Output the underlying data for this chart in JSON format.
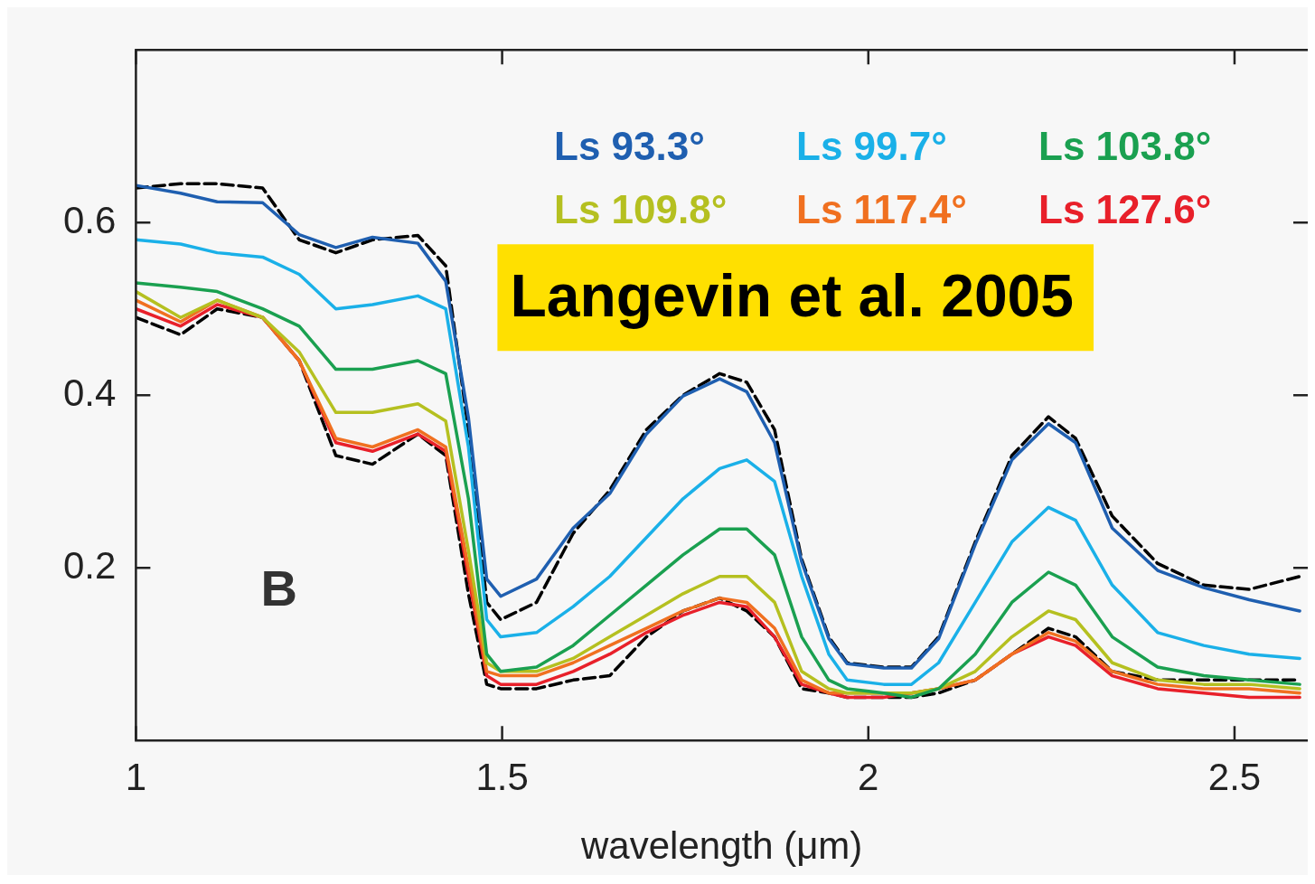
{
  "chart_data": {
    "type": "line",
    "xlabel": "wavelength (μm)",
    "x": [
      1.0,
      1.061,
      1.111,
      1.173,
      1.223,
      1.273,
      1.323,
      1.385,
      1.423,
      1.454,
      1.479,
      1.498,
      1.547,
      1.597,
      1.647,
      1.697,
      1.747,
      1.797,
      1.834,
      1.872,
      1.909,
      1.946,
      1.971,
      2.021,
      2.059,
      2.096,
      2.146,
      2.196,
      2.246,
      2.283,
      2.333,
      2.395,
      2.458,
      2.52,
      2.589
    ],
    "series": [
      {
        "name": "Ls 93.3°",
        "color": "#1f5fb0",
        "values": [
          0.643,
          0.634,
          0.624,
          0.623,
          0.586,
          0.571,
          0.583,
          0.576,
          0.532,
          0.374,
          0.187,
          0.167,
          0.187,
          0.246,
          0.286,
          0.355,
          0.399,
          0.419,
          0.404,
          0.345,
          0.207,
          0.118,
          0.089,
          0.084,
          0.084,
          0.118,
          0.227,
          0.325,
          0.367,
          0.345,
          0.246,
          0.197,
          0.177,
          0.163,
          0.15
        ]
      },
      {
        "name": "Ls 99.7°",
        "color": "#1ab0e8",
        "values": [
          0.58,
          0.575,
          0.565,
          0.56,
          0.54,
          0.5,
          0.505,
          0.515,
          0.5,
          0.34,
          0.14,
          0.12,
          0.125,
          0.155,
          0.19,
          0.235,
          0.28,
          0.315,
          0.325,
          0.3,
          0.19,
          0.1,
          0.07,
          0.065,
          0.065,
          0.09,
          0.16,
          0.23,
          0.27,
          0.255,
          0.18,
          0.125,
          0.11,
          0.1,
          0.095
        ]
      },
      {
        "name": "Ls 103.8°",
        "color": "#1aa050",
        "values": [
          0.53,
          0.525,
          0.52,
          0.5,
          0.48,
          0.43,
          0.43,
          0.44,
          0.425,
          0.28,
          0.1,
          0.08,
          0.085,
          0.11,
          0.145,
          0.18,
          0.215,
          0.245,
          0.245,
          0.215,
          0.12,
          0.07,
          0.06,
          0.055,
          0.05,
          0.06,
          0.1,
          0.16,
          0.195,
          0.18,
          0.12,
          0.085,
          0.075,
          0.07,
          0.065
        ]
      },
      {
        "name": "Ls 109.8°",
        "color": "#b5c020",
        "values": [
          0.52,
          0.49,
          0.51,
          0.49,
          0.45,
          0.38,
          0.38,
          0.39,
          0.37,
          0.22,
          0.09,
          0.08,
          0.08,
          0.095,
          0.12,
          0.145,
          0.17,
          0.19,
          0.19,
          0.16,
          0.08,
          0.06,
          0.055,
          0.055,
          0.055,
          0.06,
          0.08,
          0.12,
          0.15,
          0.14,
          0.09,
          0.07,
          0.065,
          0.065,
          0.06
        ]
      },
      {
        "name": "Ls 117.4°",
        "color": "#f07020",
        "values": [
          0.51,
          0.485,
          0.51,
          0.49,
          0.44,
          0.35,
          0.34,
          0.36,
          0.34,
          0.2,
          0.08,
          0.075,
          0.075,
          0.09,
          0.11,
          0.13,
          0.15,
          0.165,
          0.16,
          0.13,
          0.07,
          0.055,
          0.055,
          0.055,
          0.055,
          0.06,
          0.07,
          0.1,
          0.125,
          0.115,
          0.08,
          0.065,
          0.06,
          0.06,
          0.055
        ]
      },
      {
        "name": "Ls 127.6°",
        "color": "#e8202a",
        "values": [
          0.5,
          0.48,
          0.505,
          0.49,
          0.44,
          0.345,
          0.335,
          0.355,
          0.335,
          0.19,
          0.075,
          0.065,
          0.065,
          0.08,
          0.1,
          0.125,
          0.145,
          0.16,
          0.155,
          0.12,
          0.065,
          0.055,
          0.05,
          0.05,
          0.055,
          0.06,
          0.07,
          0.1,
          0.12,
          0.11,
          0.075,
          0.06,
          0.055,
          0.05,
          0.05
        ]
      },
      {
        "color": "#000000",
        "line_style": "dashed",
        "values": [
          0.64,
          0.645,
          0.645,
          0.64,
          0.58,
          0.565,
          0.58,
          0.585,
          0.55,
          0.36,
          0.16,
          0.14,
          0.16,
          0.24,
          0.29,
          0.36,
          0.4,
          0.425,
          0.415,
          0.36,
          0.21,
          0.12,
          0.09,
          0.085,
          0.085,
          0.12,
          0.23,
          0.33,
          0.375,
          0.35,
          0.26,
          0.205,
          0.18,
          0.175,
          0.19
        ]
      },
      {
        "color": "#000000",
        "line_style": "dashed",
        "values": [
          0.49,
          0.47,
          0.5,
          0.49,
          0.44,
          0.33,
          0.32,
          0.355,
          0.33,
          0.17,
          0.065,
          0.06,
          0.06,
          0.07,
          0.075,
          0.12,
          0.15,
          0.165,
          0.15,
          0.12,
          0.06,
          0.055,
          0.05,
          0.05,
          0.05,
          0.055,
          0.07,
          0.1,
          0.13,
          0.12,
          0.08,
          0.07,
          0.07,
          0.07,
          0.07
        ]
      }
    ],
    "xlim": [
      1,
      2.6
    ],
    "xticks": [
      1,
      1.5,
      2,
      2.5
    ],
    "ylim": [
      0,
      0.8
    ],
    "yticks": [
      0.2,
      0.4,
      0.6
    ],
    "grid": false,
    "legend": "top right",
    "marker": "none",
    "line_style": "solid",
    "annotations": [
      "B",
      "Langevin et al. 2005"
    ]
  }
}
